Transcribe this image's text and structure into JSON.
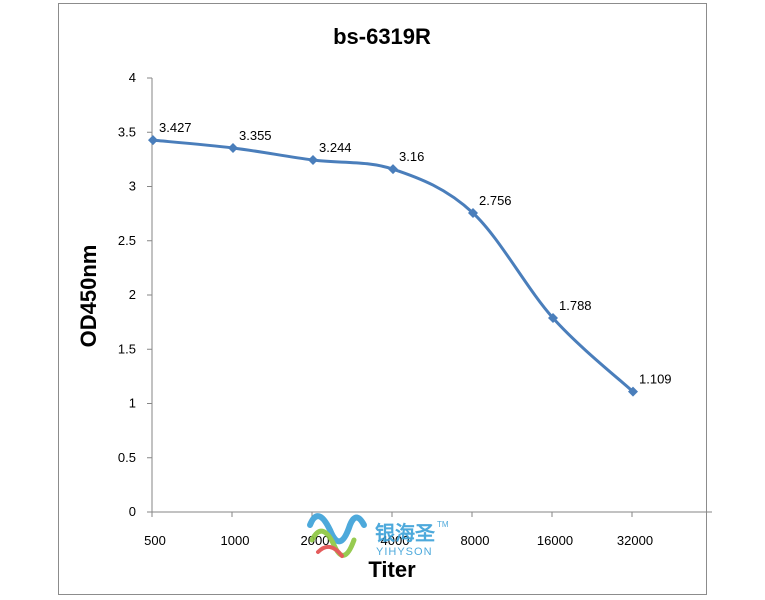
{
  "chart_data": {
    "type": "line",
    "title": "bs-6319R",
    "xlabel": "Titer",
    "ylabel": "OD450nm",
    "categories": [
      "500",
      "1000",
      "2000",
      "4000",
      "8000",
      "16000",
      "32000"
    ],
    "series": [
      {
        "values": [
          3.427,
          3.355,
          3.244,
          3.16,
          2.756,
          1.788,
          1.109
        ],
        "labels": [
          "3.427",
          "3.355",
          "3.244",
          "3.16",
          "2.756",
          "1.788",
          "1.109"
        ]
      }
    ],
    "ylim": [
      0,
      4
    ],
    "yticks": [
      "0",
      "0.5",
      "1",
      "1.5",
      "2",
      "2.5",
      "3",
      "3.5",
      "4"
    ],
    "grid": false,
    "legend": "none",
    "colors": {
      "line": "#4a7ebb",
      "axis": "#868686"
    }
  },
  "watermark": {
    "name": "银海圣",
    "sub": "YIHYSON",
    "tm": "TM"
  }
}
